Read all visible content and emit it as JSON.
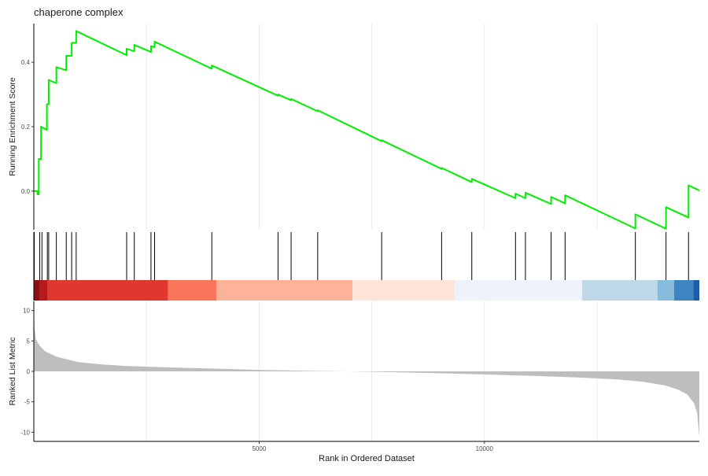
{
  "chart_data": {
    "type": "line",
    "title": "chaperone complex",
    "xlabel": "Rank in Ordered Dataset",
    "xlim": [
      0,
      14770
    ],
    "x_ticks": [
      5000,
      10000
    ],
    "x_tick_labels": [
      "5000",
      "10000"
    ],
    "grid": true,
    "panels": [
      {
        "name": "running-enrichment",
        "ylabel": "Running Enrichment Score",
        "ylim": [
          -0.12,
          0.52
        ],
        "y_ticks": [
          0.0,
          0.2,
          0.4
        ],
        "y_tick_labels": [
          "0.0",
          "0.2",
          "0.4"
        ],
        "line_color": "#00ee00",
        "points": [
          [
            0,
            0.0
          ],
          [
            80,
            0.0
          ],
          [
            80,
            -0.01
          ],
          [
            110,
            -0.01
          ],
          [
            110,
            0.1
          ],
          [
            160,
            0.1
          ],
          [
            160,
            0.2
          ],
          [
            290,
            0.19
          ],
          [
            290,
            0.27
          ],
          [
            330,
            0.27
          ],
          [
            330,
            0.345
          ],
          [
            500,
            0.335
          ],
          [
            500,
            0.385
          ],
          [
            720,
            0.375
          ],
          [
            720,
            0.42
          ],
          [
            840,
            0.42
          ],
          [
            840,
            0.46
          ],
          [
            940,
            0.46
          ],
          [
            940,
            0.497
          ],
          [
            2060,
            0.422
          ],
          [
            2060,
            0.442
          ],
          [
            2230,
            0.434
          ],
          [
            2230,
            0.454
          ],
          [
            2600,
            0.432
          ],
          [
            2600,
            0.45
          ],
          [
            2680,
            0.447
          ],
          [
            2680,
            0.464
          ],
          [
            3950,
            0.38
          ],
          [
            3950,
            0.39
          ],
          [
            5420,
            0.296
          ],
          [
            5420,
            0.3
          ],
          [
            5710,
            0.282
          ],
          [
            5710,
            0.286
          ],
          [
            6300,
            0.248
          ],
          [
            6300,
            0.251
          ],
          [
            7720,
            0.155
          ],
          [
            7720,
            0.158
          ],
          [
            9050,
            0.069
          ],
          [
            9050,
            0.072
          ],
          [
            9720,
            0.028
          ],
          [
            9720,
            0.038
          ],
          [
            10690,
            -0.022
          ],
          [
            10690,
            -0.008
          ],
          [
            10910,
            -0.022
          ],
          [
            10910,
            -0.005
          ],
          [
            11480,
            -0.04
          ],
          [
            11480,
            -0.018
          ],
          [
            11790,
            -0.038
          ],
          [
            11790,
            -0.013
          ],
          [
            13350,
            -0.116
          ],
          [
            13350,
            -0.072
          ],
          [
            14030,
            -0.117
          ],
          [
            14030,
            -0.05
          ],
          [
            14530,
            -0.082
          ],
          [
            14530,
            0.018
          ],
          [
            14770,
            0.002
          ]
        ]
      },
      {
        "name": "gene-hits",
        "hit_ranks": [
          10,
          130,
          180,
          300,
          330,
          500,
          720,
          840,
          940,
          2060,
          2230,
          2600,
          2680,
          3950,
          5420,
          5710,
          6300,
          7720,
          9050,
          9720,
          10690,
          10910,
          11480,
          11790,
          13350,
          14030,
          14530
        ]
      },
      {
        "name": "color-band",
        "segments": [
          {
            "start": 0,
            "end": 130,
            "color": "#8b0f14"
          },
          {
            "start": 130,
            "end": 310,
            "color": "#b7191d"
          },
          {
            "start": 310,
            "end": 2980,
            "color": "#e0372f"
          },
          {
            "start": 2980,
            "end": 4050,
            "color": "#f97559"
          },
          {
            "start": 4050,
            "end": 7070,
            "color": "#fdb39a"
          },
          {
            "start": 7070,
            "end": 9340,
            "color": "#fee4d8"
          },
          {
            "start": 9340,
            "end": 12170,
            "color": "#eef3fb"
          },
          {
            "start": 12170,
            "end": 13840,
            "color": "#c0d9e9"
          },
          {
            "start": 13840,
            "end": 14210,
            "color": "#86bcdc"
          },
          {
            "start": 14210,
            "end": 14640,
            "color": "#3d86c2"
          },
          {
            "start": 14640,
            "end": 14770,
            "color": "#1c5fa6"
          }
        ]
      },
      {
        "name": "ranked-list-metric",
        "ylabel": "Ranked List Metric",
        "ylim": [
          -11.5,
          11.5
        ],
        "y_ticks": [
          10,
          5,
          0,
          -5,
          -10
        ],
        "y_tick_labels": [
          "10",
          "5",
          "0",
          "-5",
          "-10"
        ],
        "fill_color": "#bebebe",
        "points": [
          [
            0,
            11.0
          ],
          [
            15,
            7.0
          ],
          [
            50,
            5.2
          ],
          [
            120,
            4.3
          ],
          [
            250,
            3.3
          ],
          [
            500,
            2.4
          ],
          [
            1000,
            1.5
          ],
          [
            1500,
            1.15
          ],
          [
            2000,
            0.9
          ],
          [
            3000,
            0.65
          ],
          [
            4000,
            0.45
          ],
          [
            5000,
            0.25
          ],
          [
            6000,
            0.1
          ],
          [
            7000,
            0.0
          ],
          [
            8000,
            -0.15
          ],
          [
            9000,
            -0.3
          ],
          [
            10000,
            -0.5
          ],
          [
            11000,
            -0.72
          ],
          [
            12000,
            -0.98
          ],
          [
            12500,
            -1.15
          ],
          [
            13000,
            -1.35
          ],
          [
            13500,
            -1.7
          ],
          [
            14000,
            -2.3
          ],
          [
            14300,
            -3.0
          ],
          [
            14500,
            -3.8
          ],
          [
            14650,
            -5.2
          ],
          [
            14720,
            -6.8
          ],
          [
            14770,
            -10.8
          ]
        ]
      }
    ]
  }
}
